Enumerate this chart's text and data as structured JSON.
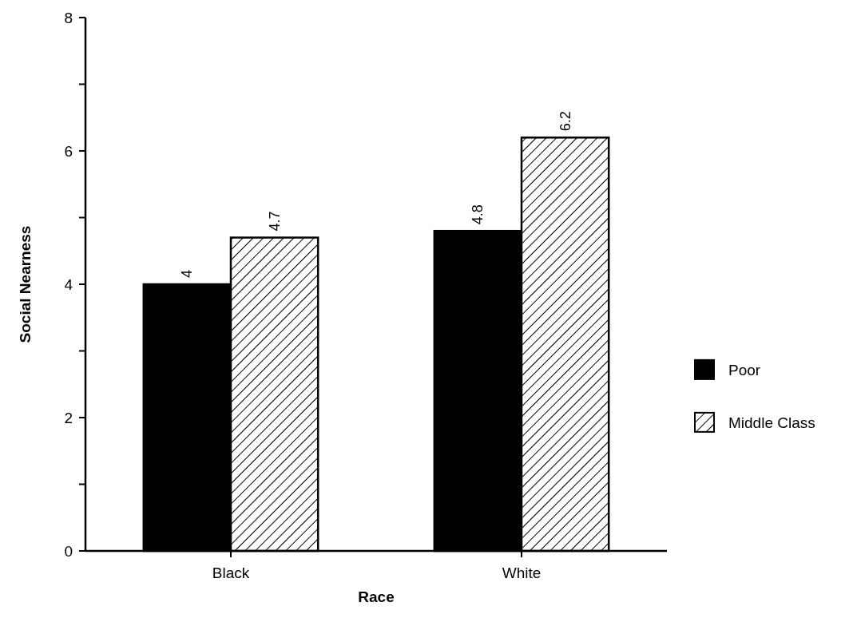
{
  "chart_data": {
    "type": "bar",
    "xlabel": "Race",
    "ylabel": "Social Nearness",
    "categories": [
      "Black",
      "White"
    ],
    "series": [
      {
        "name": "Poor",
        "color": "#000000",
        "values": [
          4,
          4.8
        ]
      },
      {
        "name": "Middle Class",
        "color": "#000000",
        "values": [
          4.7,
          6.2
        ]
      }
    ],
    "ylim": [
      0,
      8
    ],
    "yticks": [
      0,
      {
        "value": 1,
        "label": null
      },
      2,
      {
        "value": 3,
        "label": null
      },
      4,
      {
        "value": 5,
        "label": null
      },
      6,
      {
        "value": 7,
        "label": null
      },
      8
    ],
    "data_labels": true,
    "legend": "right",
    "grid": false
  }
}
